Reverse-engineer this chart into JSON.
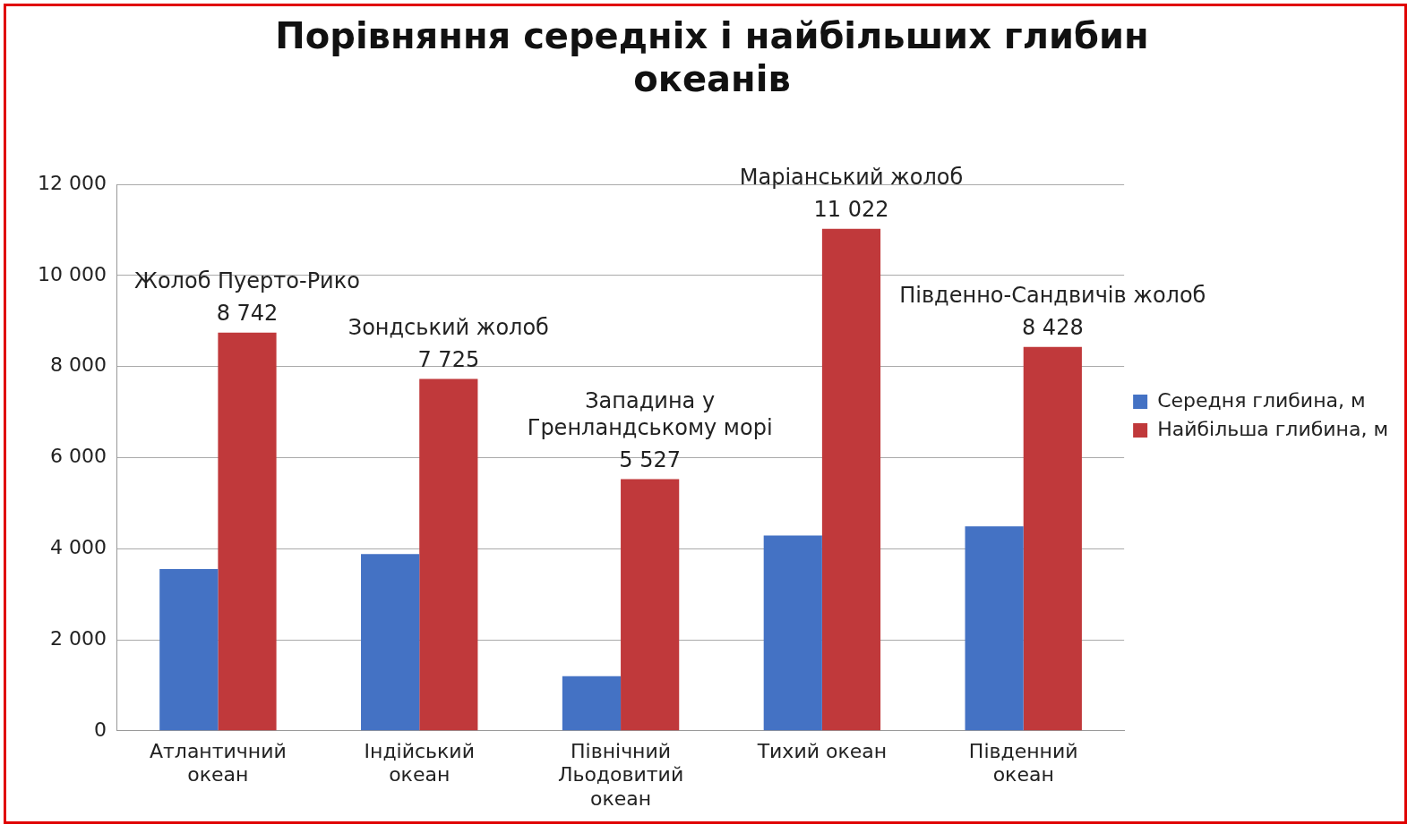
{
  "chart_data": {
    "type": "bar",
    "title": "Порівняння середніх і найбільших глибин океанів",
    "categories": [
      "Атлантичний океан",
      "Індійський океан",
      "Північний Льодовитий океан",
      "Тихий океан",
      "Південний океан"
    ],
    "series": [
      {
        "name": "Середня глибина, м",
        "color": "#4472c4",
        "values": [
          3550,
          3880,
          1200,
          4290,
          4490
        ]
      },
      {
        "name": "Найбільша глибина, м",
        "color": "#c0393b",
        "values": [
          8742,
          7725,
          5527,
          11022,
          8428
        ],
        "value_labels": [
          "8 742",
          "7 725",
          "5 527",
          "11 022",
          "8 428"
        ]
      }
    ],
    "ylim": [
      0,
      12000
    ],
    "yticks": [
      {
        "value": 0,
        "label": "0"
      },
      {
        "value": 2000,
        "label": "2 000"
      },
      {
        "value": 4000,
        "label": "4 000"
      },
      {
        "value": 6000,
        "label": "6 000"
      },
      {
        "value": 8000,
        "label": "8 000"
      },
      {
        "value": 10000,
        "label": "10 000"
      },
      {
        "value": 12000,
        "label": "12 000"
      }
    ],
    "grid": "y",
    "legend": "right",
    "annotations": [
      {
        "text": "Жолоб Пуерто-Рико",
        "x": "Атлантичний океан",
        "y": 8742
      },
      {
        "text": "Зондський жолоб",
        "x": "Індійський океан",
        "y": 7725
      },
      {
        "text": "Западина у Гренландському морі",
        "x": "Північний Льодовитий океан",
        "y": 5527
      },
      {
        "text": "Маріанський жолоб",
        "x": "Тихий океан",
        "y": 11022
      },
      {
        "text": "Південно-Сандвичів жолоб",
        "x": "Південний океан",
        "y": 8428
      }
    ]
  }
}
